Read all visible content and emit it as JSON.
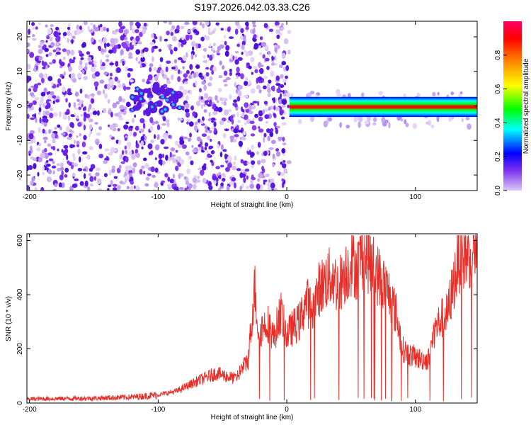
{
  "title": "S197.2026.042.03.33.C26",
  "chart_data": [
    {
      "type": "heatmap",
      "xlabel": "Height of straight line (km)",
      "ylabel": "Frequency (Hz)",
      "xlim": [
        -202,
        148
      ],
      "ylim": [
        -24.5,
        24.5
      ],
      "xticks": [
        -200,
        -100,
        0,
        100
      ],
      "yticks": [
        -20,
        -10,
        0,
        10,
        20
      ],
      "colorbar": {
        "label": "Normalized spectral amplitude",
        "range": [
          0,
          1
        ],
        "ticks": [
          0.0,
          0.2,
          0.4,
          0.6,
          0.8
        ],
        "colormap": [
          "#dcc8f5",
          "#7a2ff0",
          "#0000ff",
          "#00ffff",
          "#00ff00",
          "#ffff00",
          "#ff8800",
          "#ff0000",
          "#ff0066"
        ]
      },
      "regions": [
        {
          "x": [
            -202,
            2
          ],
          "y": [
            -24.5,
            24.5
          ],
          "description": "scattered noise",
          "amplitude": 0.1
        },
        {
          "x": [
            -120,
            -82
          ],
          "y": [
            -2,
            6
          ],
          "description": "weak cluster",
          "amplitude": 0.35
        },
        {
          "x": [
            2,
            148
          ],
          "y": [
            -3,
            3
          ],
          "description": "strong line near 0 Hz",
          "amplitude": 0.9
        }
      ]
    },
    {
      "type": "line",
      "xlabel": "Height of straight line (km)",
      "ylabel": "SNR (10 * v/v)",
      "xlim": [
        -202,
        148
      ],
      "ylim": [
        0,
        625
      ],
      "xticks": [
        -200,
        -100,
        0,
        100
      ],
      "yticks": [
        0,
        200,
        400,
        600
      ],
      "color": "#e8302a",
      "series": [
        {
          "x": [
            -202,
            -150,
            -120,
            -100,
            -85,
            -70,
            -55,
            -40,
            -30,
            -25,
            -22,
            -15,
            -10,
            -5,
            0,
            5,
            10,
            15,
            20,
            25,
            30,
            35,
            40,
            45,
            50,
            55,
            60,
            65,
            70,
            75,
            80,
            85,
            90,
            95,
            100,
            105,
            110,
            115,
            120,
            125,
            130,
            135,
            140,
            145,
            148
          ],
          "values": [
            15,
            18,
            22,
            30,
            45,
            80,
            110,
            90,
            160,
            430,
            260,
            300,
            240,
            340,
            250,
            280,
            300,
            380,
            340,
            420,
            450,
            470,
            430,
            480,
            520,
            500,
            560,
            520,
            480,
            440,
            400,
            330,
            200,
            180,
            170,
            160,
            160,
            270,
            310,
            330,
            450,
            560,
            540,
            580,
            560
          ]
        }
      ]
    }
  ]
}
